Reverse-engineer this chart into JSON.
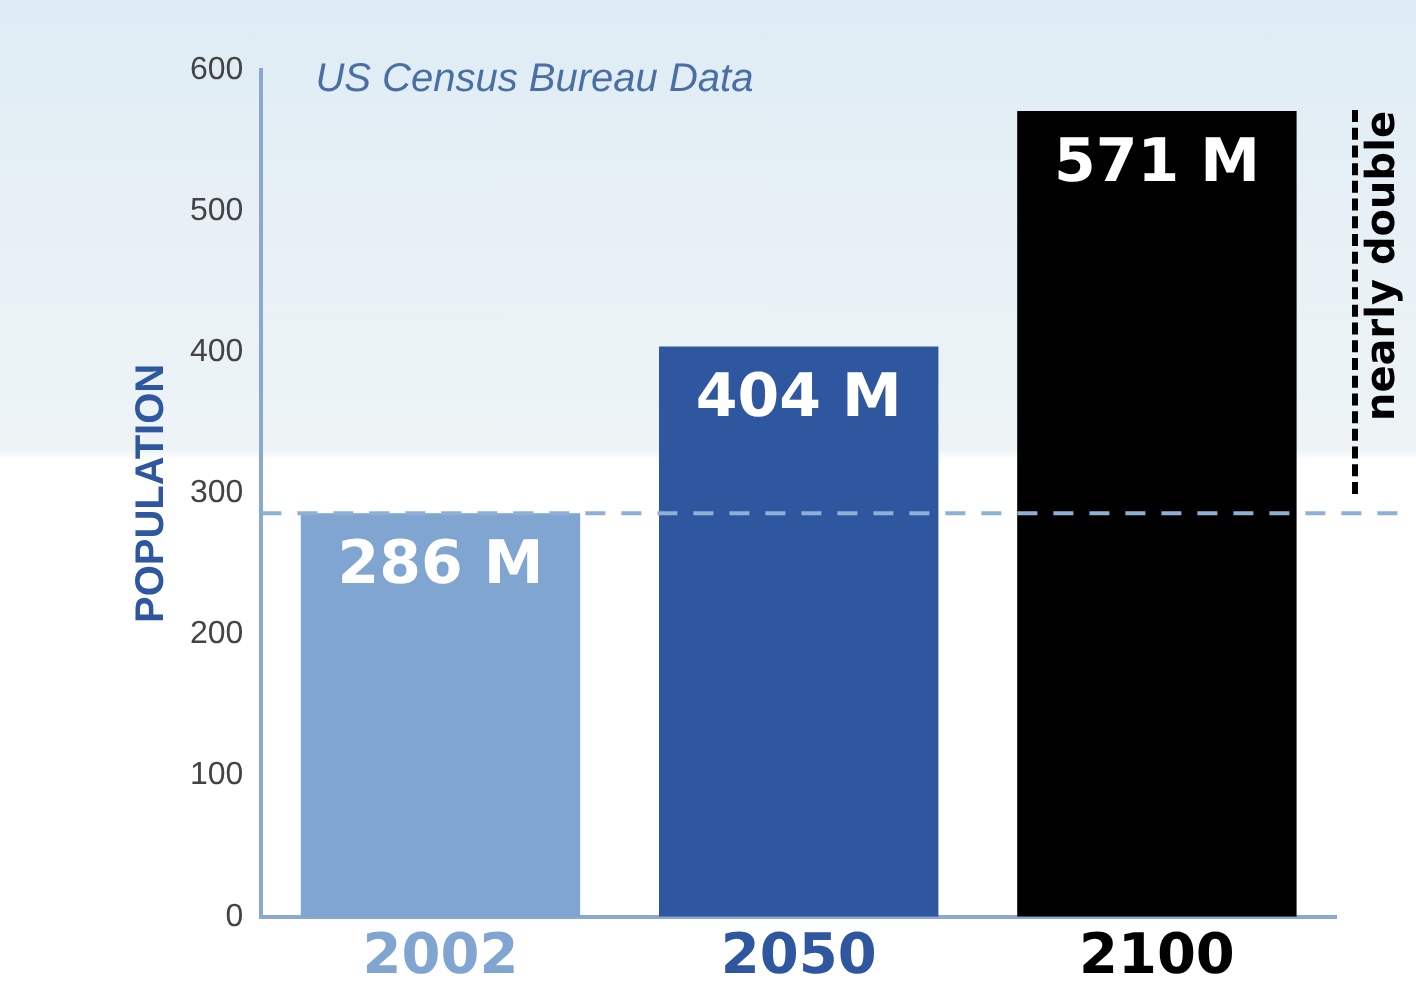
{
  "chart_data": {
    "type": "bar",
    "title": "US Census Bureau Data",
    "ylabel": "POPULATION",
    "categories": [
      "2002",
      "2050",
      "2100"
    ],
    "values": [
      286,
      404,
      571
    ],
    "colors": [
      "#7fa5d0",
      "#2f57a0",
      "#000000"
    ],
    "value_labels": [
      "286 M",
      "404 M",
      "571 M"
    ],
    "ylim": [
      0,
      600
    ],
    "yticks": [
      0,
      100,
      200,
      300,
      400,
      500,
      600
    ],
    "grid": false,
    "legend": false,
    "ref_lines": [
      {
        "axis": "y",
        "value": 286,
        "color": "#8fb0d6",
        "line_style": "dashed"
      }
    ],
    "annotations": [
      "nearly double"
    ]
  }
}
